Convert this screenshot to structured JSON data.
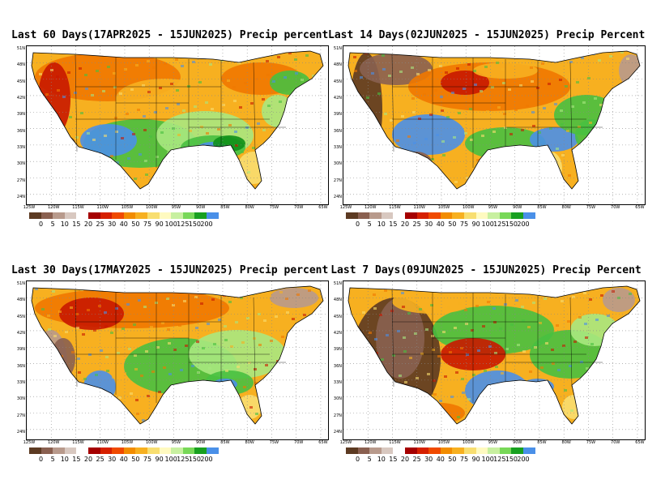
{
  "panels": [
    {
      "id": "p60",
      "title": "Last 60 Days(17APR2025 - 15JUN2025) Precip percent"
    },
    {
      "id": "p14",
      "title": "Last 14 Days(02JUN2025 - 15JUN2025) Precip Percent"
    },
    {
      "id": "p30",
      "title": "Last 30 Days(17MAY2025 - 15JUN2025) Precip percent"
    },
    {
      "id": "p7",
      "title": "Last 7 Days(09JUN2025 - 15JUN2025) Precip Percent"
    }
  ],
  "lat_labels": [
    "51N",
    "48N",
    "45N",
    "42N",
    "39N",
    "36N",
    "33N",
    "30N",
    "27N",
    "24N"
  ],
  "lon_labels": [
    "125W",
    "120W",
    "115W",
    "110W",
    "105W",
    "100W",
    "95W",
    "90W",
    "85W",
    "80W",
    "75W",
    "70W",
    "65W"
  ],
  "legend": {
    "labels": [
      "0",
      "5",
      "10",
      "15",
      "20",
      "25",
      "30",
      "40",
      "50",
      "75",
      "90",
      "100",
      "125",
      "150",
      "200"
    ],
    "colors": [
      "#5c3a22",
      "#8a6050",
      "#b89a8c",
      "#d8c8c0",
      "#ffffff",
      "#a50000",
      "#d62000",
      "#f04a00",
      "#f28c00",
      "#f7b020",
      "#f8de70",
      "#fffac0",
      "#c8f0a0",
      "#78d858",
      "#18a020",
      "#4a90e8"
    ]
  },
  "colors": {
    "dry_deep": "#5c3a22",
    "dry": "#8a6050",
    "dry_light": "#b89a8c",
    "red": "#c81800",
    "orange": "#f07800",
    "amber": "#f7b020",
    "yellow": "#f8de70",
    "pale": "#fffac0",
    "lightgreen": "#a8e880",
    "green": "#48c040",
    "darkgreen": "#109018",
    "blue": "#4a90e8"
  }
}
